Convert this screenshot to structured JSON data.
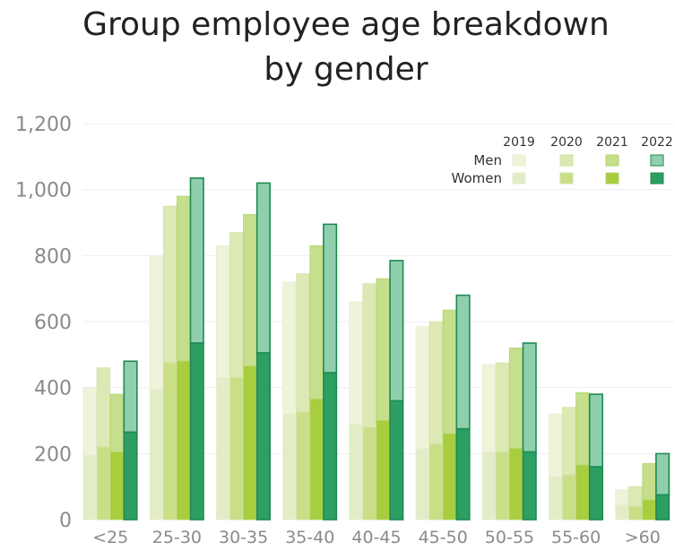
{
  "chart_data": {
    "type": "bar",
    "title_line1": "Group employee age breakdown",
    "title_line2": "by gender",
    "categories": [
      "<25",
      "25-30",
      "30-35",
      "35-40",
      "40-45",
      "45-50",
      "50-55",
      "55-60",
      ">60"
    ],
    "years": [
      "2019",
      "2020",
      "2021",
      "2022"
    ],
    "legend_rows": [
      "Men",
      "Women"
    ],
    "series": [
      {
        "name": "2019",
        "women": [
          195,
          395,
          430,
          320,
          290,
          215,
          205,
          130,
          45
        ],
        "total": [
          400,
          800,
          830,
          720,
          660,
          585,
          470,
          320,
          90
        ]
      },
      {
        "name": "2020",
        "women": [
          220,
          475,
          430,
          325,
          280,
          230,
          205,
          135,
          40
        ],
        "total": [
          460,
          950,
          870,
          745,
          715,
          600,
          475,
          340,
          100
        ]
      },
      {
        "name": "2021",
        "women": [
          205,
          480,
          465,
          365,
          300,
          260,
          215,
          165,
          60
        ],
        "total": [
          380,
          980,
          925,
          830,
          730,
          635,
          520,
          385,
          170
        ]
      },
      {
        "name": "2022",
        "women": [
          265,
          535,
          505,
          445,
          360,
          275,
          205,
          160,
          75
        ],
        "total": [
          480,
          1035,
          1020,
          895,
          785,
          680,
          535,
          380,
          200
        ]
      }
    ],
    "yticks": [
      "0",
      "200",
      "400",
      "600",
      "800",
      "1,000",
      "1,200"
    ],
    "ylim": [
      0,
      1200
    ],
    "grid": true,
    "legend_position": "top-right",
    "colors": {
      "men": [
        "#eef3da",
        "#dde9b4",
        "#c5df8c",
        "#8fcfae"
      ],
      "women": [
        "#e2ecc6",
        "#c8df88",
        "#a8cd3e",
        "#2e9f63"
      ],
      "edge": [
        "#e8eed2",
        "#d2e3a2",
        "#b2d46c",
        "#1f8a52"
      ]
    }
  }
}
